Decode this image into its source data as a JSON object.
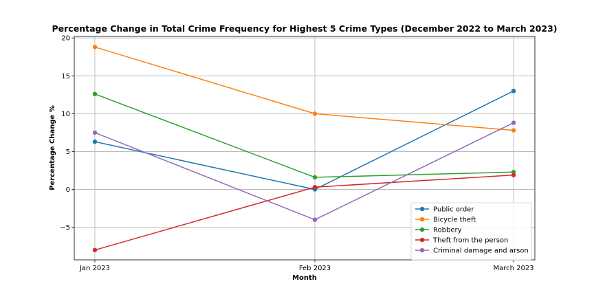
{
  "chart_data": {
    "type": "line",
    "title": "Percentage Change in Total Crime Frequency for Highest 5 Crime Types (December 2022 to March 2023)",
    "xlabel": "Month",
    "ylabel": "Percentage Change %",
    "categories": [
      "Jan 2023",
      "Feb 2023",
      "March 2023"
    ],
    "ylim": [
      -9.3,
      20.2
    ],
    "yticks": [
      -5,
      0,
      5,
      10,
      15,
      20
    ],
    "ytick_labels": [
      "−5",
      "0",
      "5",
      "10",
      "15",
      "20"
    ],
    "grid": true,
    "legend_position": "lower-right",
    "series": [
      {
        "name": "Public order",
        "color": "#1f77b4",
        "values": [
          6.3,
          0.0,
          13.0
        ]
      },
      {
        "name": "Bicycle theft",
        "color": "#ff7f0e",
        "values": [
          18.8,
          10.0,
          7.8
        ]
      },
      {
        "name": "Robbery",
        "color": "#2ca02c",
        "values": [
          12.6,
          1.6,
          2.3
        ]
      },
      {
        "name": "Theft from the person",
        "color": "#d62728",
        "values": [
          -8.0,
          0.3,
          1.9
        ]
      },
      {
        "name": "Criminal damage and arson",
        "color": "#9467bd",
        "values": [
          7.5,
          -4.0,
          8.8
        ]
      }
    ]
  }
}
